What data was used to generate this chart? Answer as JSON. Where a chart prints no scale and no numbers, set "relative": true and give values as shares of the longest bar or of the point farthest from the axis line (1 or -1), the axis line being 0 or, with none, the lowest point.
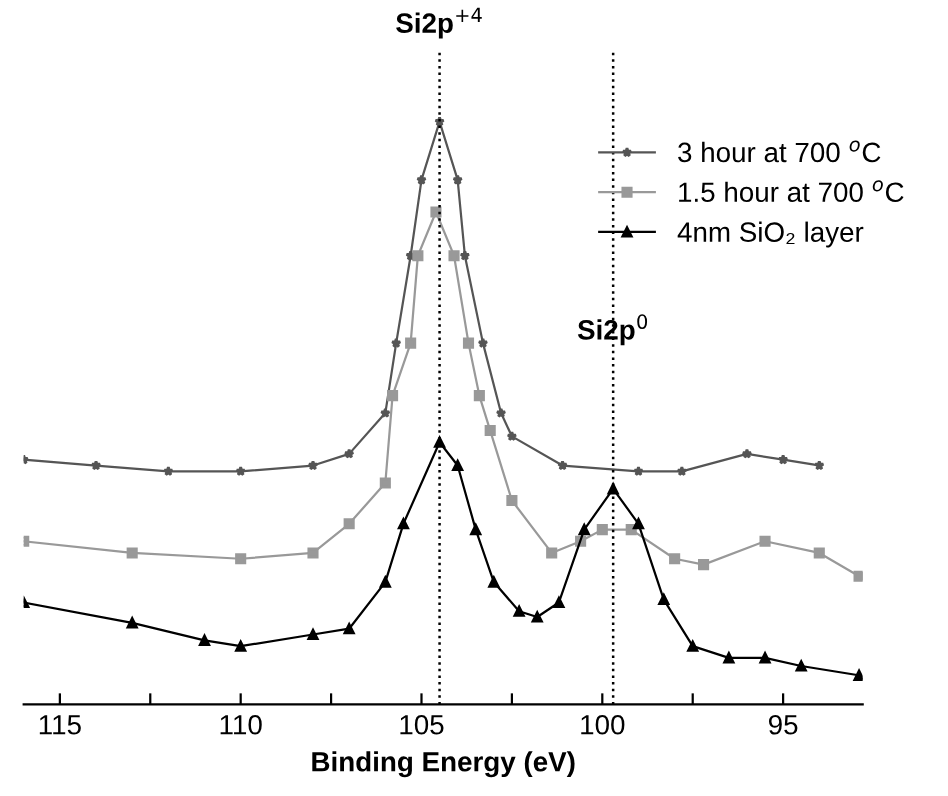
{
  "chart_data": {
    "type": "line",
    "xlabel": "Binding Energy (eV)",
    "relative": true,
    "xlim": [
      116,
      92.8
    ],
    "xticks": [
      115,
      {
        "value": 112.5,
        "label": null
      },
      110,
      {
        "value": 107.5,
        "label": null
      },
      105,
      {
        "value": 102.5,
        "label": null
      },
      100,
      {
        "value": 97.5,
        "label": null
      },
      95
    ],
    "tick_labels": "x",
    "grid": false,
    "legend": "top right",
    "ref_lines": [
      {
        "axis": "x",
        "value": 104.5,
        "label": "Si2p$^{+4}$",
        "line_style": "dotted",
        "color": "#000000"
      },
      {
        "axis": "x",
        "value": 99.7,
        "label": "Si2p$^{0}$",
        "line_style": "dotted",
        "color": "#000000"
      }
    ],
    "series": [
      {
        "name": "3 hour at 700 $^{o}$C",
        "color": "#555555",
        "marker": "star",
        "x": [
          116,
          114,
          112,
          110,
          108,
          107,
          106,
          105.7,
          105.3,
          105,
          104.5,
          104,
          103.8,
          103.3,
          102.8,
          102.5,
          101.1,
          99,
          97.8,
          96,
          95,
          94
        ],
        "values": [
          0.42,
          0.41,
          0.4,
          0.4,
          0.41,
          0.43,
          0.5,
          0.62,
          0.77,
          0.9,
          1.0,
          0.9,
          0.77,
          0.62,
          0.5,
          0.46,
          0.41,
          0.4,
          0.4,
          0.43,
          0.42,
          0.41
        ]
      },
      {
        "name": "1.5 hour at 700 $^{o}$C",
        "color": "#999999",
        "marker": "square",
        "x": [
          116,
          113,
          110,
          108,
          107,
          106,
          105.8,
          105.3,
          105.1,
          104.6,
          104.1,
          103.7,
          103.4,
          103.1,
          102.5,
          101.4,
          100.6,
          100,
          99.2,
          98,
          97.2,
          95.5,
          94,
          92.9
        ],
        "values": [
          0.28,
          0.26,
          0.25,
          0.26,
          0.31,
          0.38,
          0.53,
          0.62,
          0.77,
          0.845,
          0.77,
          0.62,
          0.53,
          0.47,
          0.35,
          0.26,
          0.28,
          0.3,
          0.3,
          0.25,
          0.24,
          0.28,
          0.26,
          0.22
        ]
      },
      {
        "name": "4nm SiO₂ layer",
        "color": "#000000",
        "marker": "triangle",
        "x": [
          116,
          113,
          111,
          110,
          108,
          107,
          106,
          105.5,
          104.5,
          104,
          103.5,
          103,
          102.3,
          101.8,
          101.2,
          100.5,
          99.7,
          99,
          98.3,
          97.5,
          96.5,
          95.5,
          94.5,
          92.9
        ],
        "values": [
          0.175,
          0.14,
          0.11,
          0.1,
          0.12,
          0.13,
          0.21,
          0.31,
          0.45,
          0.41,
          0.3,
          0.21,
          0.16,
          0.15,
          0.175,
          0.3,
          0.37,
          0.31,
          0.18,
          0.1,
          0.08,
          0.08,
          0.066,
          0.05
        ]
      }
    ]
  }
}
